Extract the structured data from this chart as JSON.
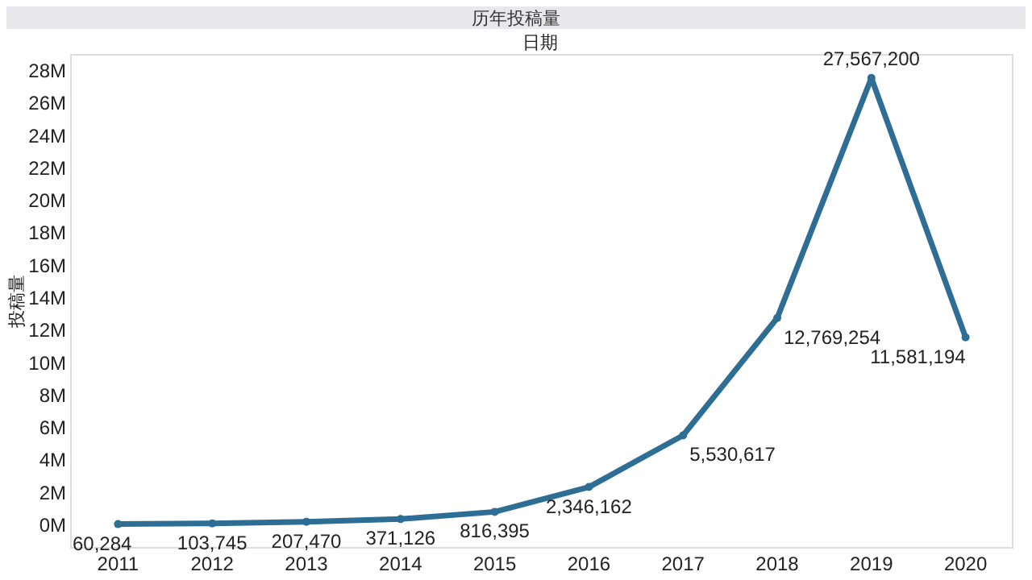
{
  "chart_data": {
    "type": "line",
    "title": "历年投稿量",
    "xlabel": "日期",
    "ylabel": "投稿量",
    "categories": [
      "2011",
      "2012",
      "2013",
      "2014",
      "2015",
      "2016",
      "2017",
      "2018",
      "2019",
      "2020"
    ],
    "series": [
      {
        "color": "#2e6e94",
        "values": [
          60284,
          103745,
          207470,
          371126,
          816395,
          2346162,
          5530617,
          12769254,
          27567200,
          11581194
        ]
      }
    ],
    "value_labels": [
      "60,284",
      "103,745",
      "207,470",
      "371,126",
      "816,395",
      "2,346,162",
      "5,530,617",
      "12,769,254",
      "27,567,200",
      "11,581,194"
    ],
    "ylim": [
      -1400000,
      29000000
    ],
    "yticks": [
      {
        "value": 0,
        "label": "0M"
      },
      {
        "value": 2000000,
        "label": "2M"
      },
      {
        "value": 4000000,
        "label": "4M"
      },
      {
        "value": 6000000,
        "label": "6M"
      },
      {
        "value": 8000000,
        "label": "8M"
      },
      {
        "value": 10000000,
        "label": "10M"
      },
      {
        "value": 12000000,
        "label": "12M"
      },
      {
        "value": 14000000,
        "label": "14M"
      },
      {
        "value": 16000000,
        "label": "16M"
      },
      {
        "value": 18000000,
        "label": "18M"
      },
      {
        "value": 20000000,
        "label": "20M"
      },
      {
        "value": 22000000,
        "label": "22M"
      },
      {
        "value": 24000000,
        "label": "24M"
      },
      {
        "value": 26000000,
        "label": "26M"
      },
      {
        "value": 28000000,
        "label": "28M"
      }
    ],
    "grid": false,
    "marker": "circle",
    "line_style": "solid"
  }
}
